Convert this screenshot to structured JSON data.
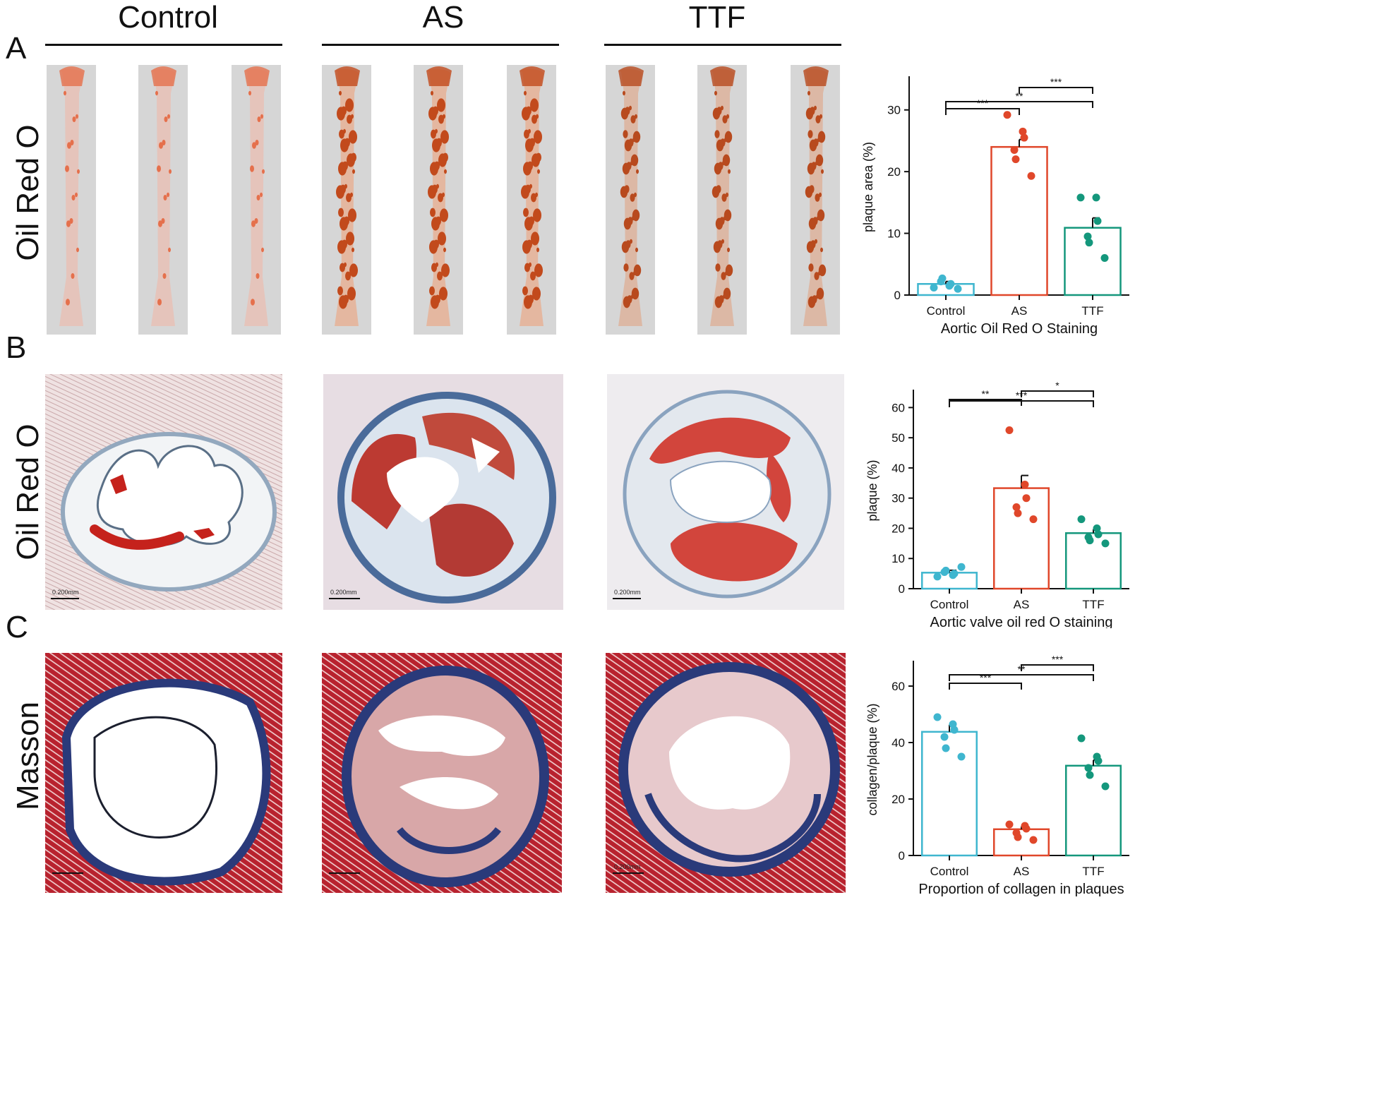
{
  "figure": {
    "column_headers": [
      "Control",
      "AS",
      "TTF"
    ],
    "panel_letters": [
      "A",
      "B",
      "C"
    ],
    "row_labels": [
      "Oil Red O",
      "Oil Red O",
      "Masson"
    ],
    "scale_bar_label": "0.200mm"
  },
  "colors": {
    "control": "#3fb6cf",
    "as": "#e0472a",
    "ttf": "#14977c",
    "stain_red": "#c0281c",
    "masson_red": "#b8222e",
    "masson_blue": "#2a3a7a"
  },
  "chart_data": [
    {
      "id": "A",
      "type": "bar",
      "categories": [
        "Control",
        "AS",
        "TTF"
      ],
      "values": [
        1.8,
        24.0,
        10.9
      ],
      "errors": [
        0.4,
        1.2,
        1.6
      ],
      "points": [
        [
          1.2,
          1.5,
          1.8,
          2.2,
          2.7,
          1.0
        ],
        [
          29.2,
          26.5,
          25.5,
          23.5,
          22.0,
          19.3
        ],
        [
          15.8,
          15.8,
          12.0,
          9.5,
          8.5,
          6.0
        ]
      ],
      "ylabel": "plaque area (%)",
      "xlabel": "Aortic Oil Red O Staining",
      "ylim": [
        0,
        35
      ],
      "yticks": [
        0,
        10,
        20,
        30
      ],
      "significance": [
        {
          "from": 0,
          "to": 1,
          "label": "***"
        },
        {
          "from": 0,
          "to": 2,
          "label": "**"
        },
        {
          "from": 1,
          "to": 2,
          "label": "***"
        }
      ]
    },
    {
      "id": "B",
      "type": "bar",
      "categories": [
        "Control",
        "AS",
        "TTF"
      ],
      "values": [
        5.3,
        33.3,
        18.4
      ],
      "errors": [
        0.8,
        4.2,
        1.3
      ],
      "points": [
        [
          4.0,
          4.5,
          5.0,
          5.5,
          6.0,
          7.2
        ],
        [
          52.5,
          34.5,
          30.0,
          27.0,
          25.0,
          23.0
        ],
        [
          23.0,
          20.0,
          18.0,
          17.0,
          16.0,
          15.0
        ]
      ],
      "ylabel": "plaque (%)",
      "xlabel": "Aortic valve oil red O staining",
      "ylim": [
        0,
        65
      ],
      "yticks": [
        0,
        10,
        20,
        30,
        40,
        50,
        60
      ],
      "significance": [
        {
          "from": 0,
          "to": 1,
          "label": "**"
        },
        {
          "from": 0,
          "to": 2,
          "label": "***"
        },
        {
          "from": 1,
          "to": 2,
          "label": "*"
        }
      ]
    },
    {
      "id": "C",
      "type": "bar",
      "categories": [
        "Control",
        "AS",
        "TTF"
      ],
      "values": [
        43.8,
        9.3,
        31.8
      ],
      "errors": [
        2.5,
        1.0,
        2.0
      ],
      "points": [
        [
          49.0,
          46.5,
          44.5,
          42.0,
          38.0,
          35.0
        ],
        [
          11.0,
          10.5,
          9.5,
          8.0,
          6.5,
          5.5
        ],
        [
          41.5,
          35.0,
          33.5,
          31.0,
          28.5,
          24.5
        ]
      ],
      "ylabel": "collagen/plaque (%)",
      "xlabel": "Proportion of collagen in plaques",
      "ylim": [
        0,
        68
      ],
      "yticks": [
        0,
        20,
        40,
        60
      ],
      "significance": [
        {
          "from": 0,
          "to": 1,
          "label": "***"
        },
        {
          "from": 0,
          "to": 2,
          "label": "**"
        },
        {
          "from": 1,
          "to": 2,
          "label": "***"
        }
      ]
    }
  ]
}
